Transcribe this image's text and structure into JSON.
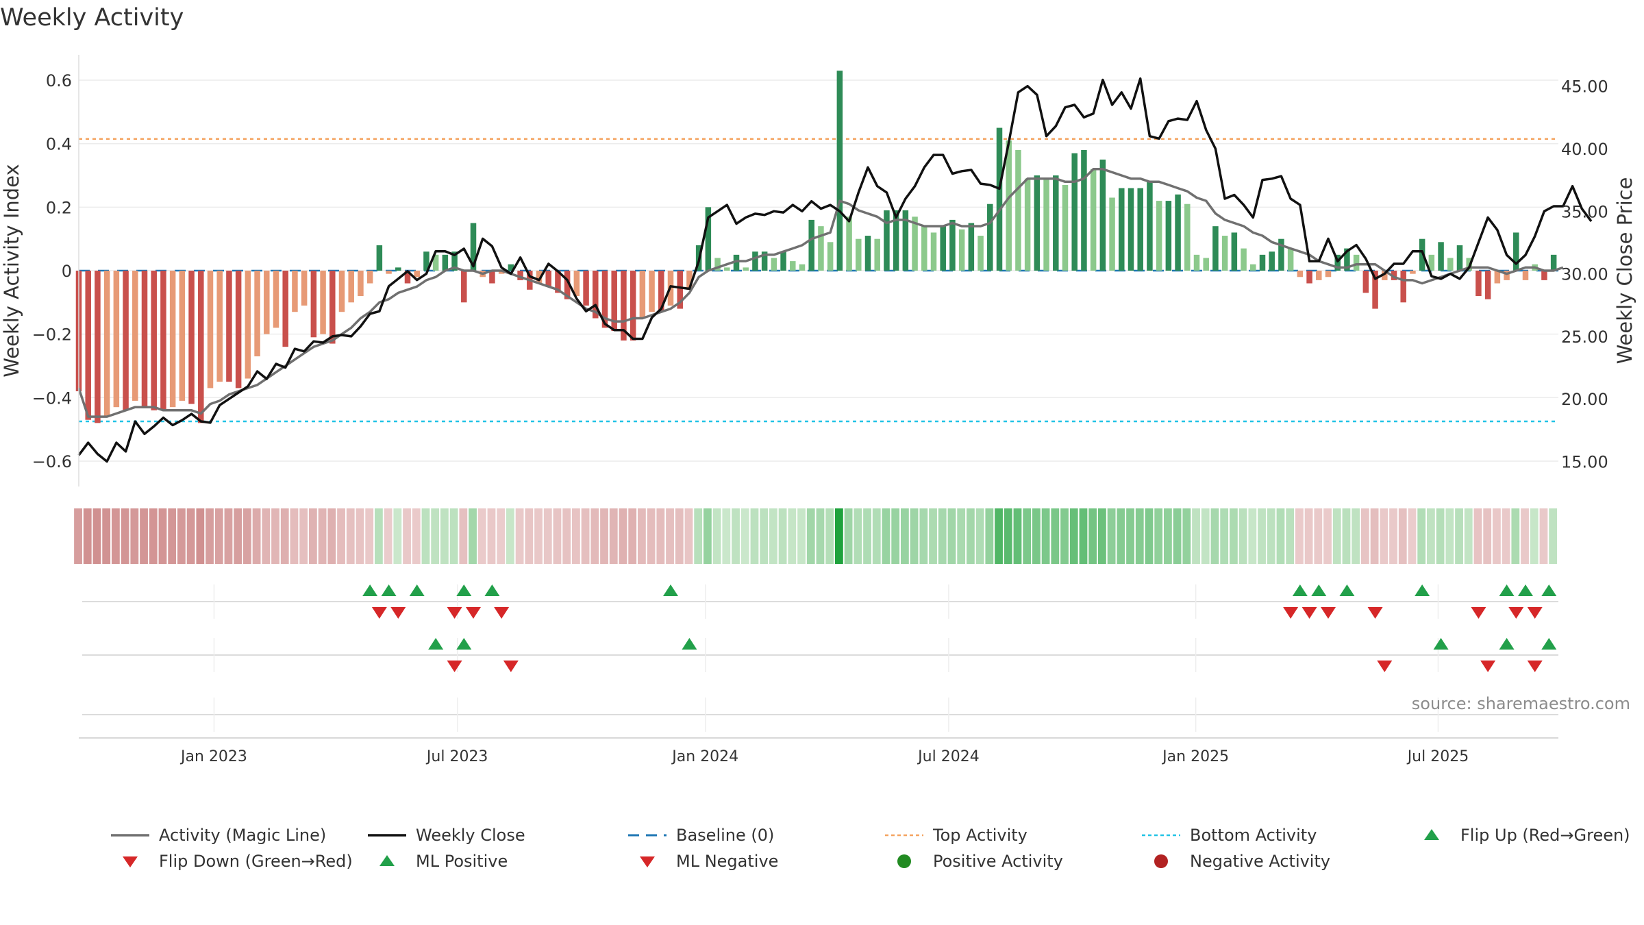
{
  "title": "Weekly Activity",
  "source": "source: sharemaestro.com",
  "colors": {
    "pos_dark": "#2e8b57",
    "pos_light": "#8cc98c",
    "neg_dark": "#c9504c",
    "neg_light": "#e79a76",
    "magic_line": "#707070",
    "close_line": "#111111",
    "baseline": "#1f77b4",
    "top": "#f4a460",
    "bottom": "#22c3e6",
    "marker_up": "#22a04a",
    "marker_down": "#d62728",
    "dot_pos": "#228b22",
    "dot_neg": "#b22222"
  },
  "legend": [
    {
      "key": "magic",
      "label": "Activity (Magic Line)"
    },
    {
      "key": "close",
      "label": "Weekly Close"
    },
    {
      "key": "baseline",
      "label": "Baseline (0)"
    },
    {
      "key": "top",
      "label": "Top Activity"
    },
    {
      "key": "bottom",
      "label": "Bottom Activity"
    },
    {
      "key": "flipup",
      "label": "Flip Up (Red→Green)"
    },
    {
      "key": "flipdown",
      "label": "Flip Down (Green→Red)"
    },
    {
      "key": "mlpos",
      "label": "ML Positive"
    },
    {
      "key": "mlneg",
      "label": "ML Negative"
    },
    {
      "key": "pospoint",
      "label": "Positive Activity"
    },
    {
      "key": "negpoint",
      "label": "Negative Activity"
    }
  ],
  "chart_data": {
    "type": "bar",
    "title": "Weekly Activity",
    "ylabel": "Weekly Activity Index",
    "y2label": "Weekly Close Price",
    "ylim": [
      -0.68,
      0.68
    ],
    "y2lim": [
      13.0,
      47.5
    ],
    "yticks": [
      -0.6,
      -0.4,
      -0.2,
      0,
      0.2,
      0.4,
      0.6
    ],
    "ytick_labels": [
      "−0.6",
      "−0.4",
      "−0.2",
      "0",
      "0.2",
      "0.4",
      "0.6"
    ],
    "y2ticks": [
      15,
      20,
      25,
      30,
      35,
      40,
      45
    ],
    "y2tick_labels": [
      "15.00",
      "20.00",
      "25.00",
      "30.00",
      "35.00",
      "40.00",
      "45.00"
    ],
    "x_start_week": 0,
    "x_end_week": 157.5,
    "xticks": [
      {
        "week": 14.4,
        "label": "Jan 2023"
      },
      {
        "week": 40.3,
        "label": "Jul 2023"
      },
      {
        "week": 66.7,
        "label": "Jan 2024"
      },
      {
        "week": 92.6,
        "label": "Jul 2024"
      },
      {
        "week": 118.9,
        "label": "Jan 2025"
      },
      {
        "week": 144.7,
        "label": "Jul 2025"
      }
    ],
    "top_activity": 0.415,
    "bottom_activity": -0.475,
    "baseline": 0,
    "activity": [
      -0.38,
      -0.47,
      -0.48,
      -0.46,
      -0.43,
      -0.44,
      -0.41,
      -0.43,
      -0.44,
      -0.44,
      -0.43,
      -0.41,
      -0.42,
      -0.48,
      -0.37,
      -0.35,
      -0.35,
      -0.37,
      -0.34,
      -0.27,
      -0.2,
      -0.18,
      -0.24,
      -0.13,
      -0.11,
      -0.21,
      -0.2,
      -0.23,
      -0.13,
      -0.1,
      -0.08,
      -0.04,
      0.08,
      -0.01,
      0.01,
      -0.04,
      -0.02,
      0.06,
      0.05,
      0.05,
      0.06,
      -0.1,
      0.15,
      -0.02,
      -0.04,
      -0.01,
      0.02,
      -0.03,
      -0.06,
      -0.04,
      -0.05,
      -0.07,
      -0.09,
      -0.08,
      -0.11,
      -0.15,
      -0.18,
      -0.19,
      -0.22,
      -0.22,
      -0.15,
      -0.13,
      -0.13,
      -0.11,
      -0.12,
      -0.06,
      0.08,
      0.2,
      0.04,
      0.01,
      0.05,
      0.01,
      0.06,
      0.06,
      0.04,
      0.06,
      0.03,
      0.02,
      0.16,
      0.14,
      0.09,
      0.63,
      0.17,
      0.1,
      0.11,
      0.1,
      0.19,
      0.19,
      0.19,
      0.17,
      0.14,
      0.12,
      0.14,
      0.16,
      0.13,
      0.15,
      0.11,
      0.21,
      0.45,
      0.41,
      0.38,
      0.29,
      0.3,
      0.29,
      0.3,
      0.27,
      0.37,
      0.38,
      0.32,
      0.35,
      0.23,
      0.26,
      0.26,
      0.26,
      0.28,
      0.22,
      0.22,
      0.24,
      0.21,
      0.05,
      0.04,
      0.14,
      0.11,
      0.12,
      0.07,
      0.02,
      0.05,
      0.06,
      0.1,
      0.07,
      -0.02,
      -0.04,
      -0.03,
      -0.02,
      0.05,
      0.07,
      0.05,
      -0.07,
      -0.12,
      -0.03,
      -0.03,
      -0.1,
      -0.01,
      0.1,
      0.05,
      0.09,
      0.04,
      0.08,
      0.04,
      -0.08,
      -0.09,
      -0.04,
      -0.03,
      0.12,
      -0.03,
      0.02,
      -0.03,
      0.05
    ],
    "magic_line": [
      -0.37,
      -0.46,
      -0.46,
      -0.46,
      -0.45,
      -0.44,
      -0.43,
      -0.43,
      -0.43,
      -0.44,
      -0.44,
      -0.44,
      -0.44,
      -0.45,
      -0.42,
      -0.41,
      -0.39,
      -0.38,
      -0.37,
      -0.36,
      -0.34,
      -0.32,
      -0.3,
      -0.28,
      -0.26,
      -0.24,
      -0.23,
      -0.22,
      -0.2,
      -0.18,
      -0.15,
      -0.13,
      -0.1,
      -0.09,
      -0.07,
      -0.06,
      -0.05,
      -0.03,
      -0.02,
      0.0,
      0.01,
      0.0,
      0.0,
      -0.01,
      0.0,
      0.0,
      -0.01,
      -0.02,
      -0.03,
      -0.04,
      -0.05,
      -0.06,
      -0.08,
      -0.1,
      -0.12,
      -0.13,
      -0.15,
      -0.16,
      -0.16,
      -0.15,
      -0.15,
      -0.14,
      -0.13,
      -0.12,
      -0.1,
      -0.07,
      -0.02,
      0.0,
      0.01,
      0.02,
      0.03,
      0.03,
      0.04,
      0.05,
      0.05,
      0.06,
      0.07,
      0.08,
      0.1,
      0.11,
      0.12,
      0.22,
      0.21,
      0.19,
      0.18,
      0.17,
      0.15,
      0.16,
      0.16,
      0.15,
      0.14,
      0.14,
      0.14,
      0.15,
      0.14,
      0.14,
      0.14,
      0.15,
      0.19,
      0.23,
      0.26,
      0.29,
      0.29,
      0.29,
      0.29,
      0.28,
      0.28,
      0.29,
      0.32,
      0.32,
      0.31,
      0.3,
      0.29,
      0.29,
      0.28,
      0.28,
      0.27,
      0.26,
      0.25,
      0.23,
      0.22,
      0.18,
      0.16,
      0.15,
      0.14,
      0.12,
      0.11,
      0.09,
      0.08,
      0.07,
      0.06,
      0.05,
      0.03,
      0.02,
      0.01,
      0.01,
      0.02,
      0.02,
      0.02,
      0.0,
      -0.02,
      -0.03,
      -0.03,
      -0.04,
      -0.03,
      -0.02,
      -0.01,
      0.0,
      0.01,
      0.01,
      0.01,
      0.0,
      -0.01,
      0.0,
      0.01,
      0.01,
      0.0,
      0.0,
      0.01
    ],
    "weekly_close": [
      15.5,
      16.5,
      15.6,
      15.0,
      16.5,
      15.8,
      18.2,
      17.2,
      17.8,
      18.5,
      17.9,
      18.3,
      18.8,
      18.2,
      18.1,
      19.5,
      20.0,
      20.5,
      21.0,
      22.2,
      21.6,
      22.8,
      22.5,
      24.0,
      23.8,
      24.6,
      24.5,
      25.0,
      25.1,
      25.0,
      25.8,
      26.8,
      27.0,
      29.0,
      29.6,
      30.2,
      29.5,
      30.0,
      31.8,
      31.8,
      31.5,
      32.0,
      30.6,
      32.8,
      32.2,
      30.5,
      30.0,
      31.3,
      29.8,
      29.5,
      30.8,
      30.2,
      29.5,
      28.0,
      27.0,
      27.5,
      26.0,
      25.5,
      25.5,
      24.8,
      24.8,
      26.5,
      27.2,
      29.0,
      28.9,
      28.8,
      31.0,
      34.5,
      35.0,
      35.5,
      34.0,
      34.5,
      34.8,
      34.7,
      35.0,
      34.9,
      35.5,
      35.0,
      35.8,
      35.2,
      35.5,
      35.0,
      34.2,
      36.5,
      38.5,
      37.0,
      36.5,
      34.5,
      36.0,
      37.0,
      38.5,
      39.5,
      39.5,
      38.0,
      38.2,
      38.3,
      37.2,
      37.1,
      36.8,
      40.5,
      44.5,
      45.0,
      44.3,
      41.0,
      41.8,
      43.3,
      43.5,
      42.5,
      42.8,
      45.5,
      43.5,
      44.5,
      43.2,
      45.6,
      41.0,
      40.8,
      42.2,
      42.4,
      42.3,
      43.8,
      41.5,
      40.0,
      36.0,
      36.3,
      35.5,
      34.5,
      37.5,
      37.6,
      37.8,
      36.0,
      35.5,
      31.0,
      31.0,
      32.8,
      31.0,
      31.8,
      32.3,
      31.2,
      29.6,
      30.0,
      30.8,
      30.8,
      31.8,
      31.8,
      29.8,
      29.6,
      30.0,
      29.6,
      30.5,
      32.5,
      34.5,
      33.5,
      31.5,
      30.8,
      31.5,
      33.0,
      35.0,
      35.4,
      35.4,
      37.0,
      35.2,
      34.2
    ]
  },
  "flip_markers": {
    "upper_up": [
      31,
      33,
      36,
      41,
      44,
      63,
      130,
      132,
      135,
      143,
      152,
      154,
      156.5
    ],
    "upper_down": [
      32,
      34,
      40,
      42,
      45,
      129,
      131,
      133,
      138,
      149,
      153,
      155
    ],
    "lower_up": [
      38,
      41,
      65,
      145,
      152,
      156.5
    ],
    "lower_down": [
      40,
      46,
      139,
      150,
      155
    ]
  }
}
